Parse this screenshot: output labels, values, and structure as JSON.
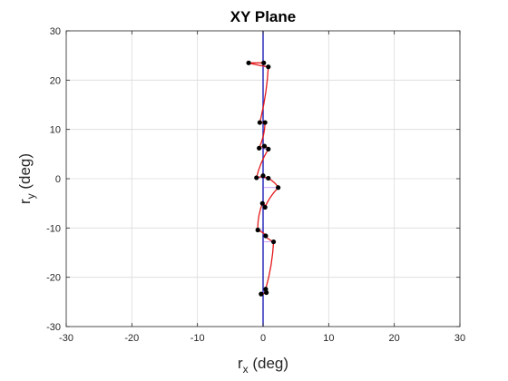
{
  "chart_data": {
    "type": "line",
    "title": "XY Plane",
    "xlabel": {
      "base": "r",
      "sub": "x",
      "unit": " (deg)"
    },
    "ylabel": {
      "base": "r",
      "sub": "y",
      "unit": " (deg)"
    },
    "xlim": [
      -30,
      30
    ],
    "ylim": [
      -30,
      30
    ],
    "xticks": [
      -30,
      -20,
      -10,
      0,
      10,
      20,
      30
    ],
    "yticks": [
      -30,
      -20,
      -10,
      0,
      10,
      20,
      30
    ],
    "xtick_labels": [
      "-30",
      "-20",
      "-10",
      "0",
      "10",
      "20",
      "30"
    ],
    "ytick_labels": [
      "-30",
      "-20",
      "-10",
      "0",
      "10",
      "20",
      "30"
    ],
    "grid": true,
    "reference_line": {
      "x": 0,
      "color": "#1f1fb8"
    },
    "series": [
      {
        "color": "#e41a1c",
        "marker_color": "#000000",
        "points": [
          [
            0.1,
            23.5
          ],
          [
            -2.2,
            23.5
          ],
          [
            0.8,
            22.7
          ],
          [
            -0.5,
            11.4
          ],
          [
            0.3,
            11.4
          ],
          [
            -0.6,
            6.2
          ],
          [
            0.2,
            6.6
          ],
          [
            0.8,
            6.0
          ],
          [
            -1.0,
            0.2
          ],
          [
            0.0,
            0.6
          ],
          [
            0.8,
            0.1
          ],
          [
            2.3,
            -1.8
          ],
          [
            0.3,
            -5.8
          ],
          [
            -0.1,
            -5.0
          ],
          [
            -0.8,
            -10.4
          ],
          [
            0.4,
            -11.6
          ],
          [
            1.6,
            -12.8
          ],
          [
            0.4,
            -22.4
          ],
          [
            0.5,
            -23.1
          ],
          [
            -0.3,
            -23.4
          ]
        ]
      }
    ],
    "connector_color": "#8a2be2"
  }
}
